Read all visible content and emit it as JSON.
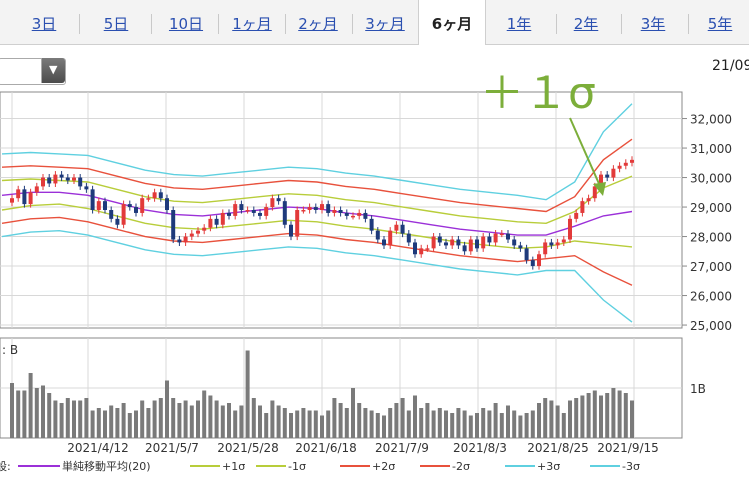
{
  "tabs": [
    {
      "label": "3日",
      "active": false
    },
    {
      "label": "5日",
      "active": false
    },
    {
      "label": "10日",
      "active": false
    },
    {
      "label": "1ヶ月",
      "active": false
    },
    {
      "label": "2ヶ月",
      "active": false
    },
    {
      "label": "3ヶ月",
      "active": false
    },
    {
      "label": "6ヶ月",
      "active": true
    },
    {
      "label": "1年",
      "active": false
    },
    {
      "label": "2年",
      "active": false
    },
    {
      "label": "3年",
      "active": false
    },
    {
      "label": "5年",
      "active": false
    }
  ],
  "date_label": "21/09",
  "annotation": {
    "text": "＋１σ",
    "color": "#7cae3a"
  },
  "chart_data": {
    "type": "line",
    "price_axis": {
      "ticks": [
        "32,000",
        "31,000",
        "30,000",
        "29,000",
        "28,000",
        "27,000",
        "26,000",
        "25,000"
      ],
      "ylim": [
        24900,
        32900
      ]
    },
    "volume_axis": {
      "ticks": [
        "1B"
      ],
      "prefix": ": B"
    },
    "x_labels": [
      "2021/4/12",
      "2021/5/7",
      "2021/5/28",
      "2021/6/18",
      "2021/7/9",
      "2021/8/3",
      "2021/8/25",
      "2021/9/15"
    ],
    "close": [
      29300,
      29600,
      29100,
      29500,
      29700,
      30000,
      29800,
      30100,
      30000,
      29900,
      30000,
      29700,
      29600,
      28900,
      29200,
      28900,
      28600,
      28400,
      29100,
      29000,
      28800,
      29300,
      29300,
      29500,
      29300,
      28900,
      27900,
      27800,
      28000,
      28100,
      28200,
      28300,
      28600,
      28400,
      28800,
      28700,
      29100,
      28900,
      28900,
      28800,
      28700,
      29000,
      29300,
      29200,
      28400,
      28000,
      28900,
      28900,
      29000,
      28900,
      29100,
      28800,
      28900,
      28800,
      28700,
      28700,
      28800,
      28600,
      28200,
      27900,
      27700,
      28200,
      28400,
      28100,
      27800,
      27400,
      27600,
      27600,
      28000,
      27800,
      27700,
      27900,
      27700,
      27500,
      27900,
      27600,
      28000,
      27800,
      28100,
      28100,
      27900,
      27700,
      27600,
      27200,
      27000,
      27400,
      27800,
      27700,
      27800,
      27900,
      28600,
      28800,
      29200,
      29300,
      29700,
      30100,
      30000,
      30300,
      30400,
      30500,
      30600
    ],
    "volume_b": [
      1.1,
      0.95,
      0.95,
      1.3,
      1.0,
      1.05,
      0.9,
      0.75,
      0.7,
      0.8,
      0.75,
      0.75,
      0.8,
      0.55,
      0.6,
      0.55,
      0.65,
      0.6,
      0.7,
      0.5,
      0.55,
      0.75,
      0.6,
      0.75,
      0.8,
      1.15,
      0.8,
      0.7,
      0.75,
      0.65,
      0.75,
      0.95,
      0.85,
      0.75,
      0.65,
      0.7,
      0.55,
      0.65,
      1.75,
      0.8,
      0.65,
      0.5,
      0.75,
      0.65,
      0.6,
      0.5,
      0.55,
      0.6,
      0.55,
      0.55,
      0.45,
      0.55,
      0.8,
      0.7,
      0.6,
      1.0,
      0.7,
      0.6,
      0.55,
      0.5,
      0.45,
      0.6,
      0.7,
      0.8,
      0.55,
      0.85,
      0.6,
      0.7,
      0.55,
      0.6,
      0.55,
      0.5,
      0.6,
      0.55,
      0.45,
      0.5,
      0.6,
      0.55,
      0.7,
      0.5,
      0.65,
      0.55,
      0.45,
      0.5,
      0.55,
      0.7,
      0.8,
      0.75,
      0.65,
      0.5,
      0.75,
      0.8,
      0.85,
      0.9,
      0.95,
      0.85,
      0.9,
      1.0,
      0.95,
      0.9,
      0.75
    ],
    "series": [
      {
        "name": "単純移動平均(20)",
        "color": "#9b30d8",
        "values": [
          29400,
          29500,
          29500,
          29400,
          29150,
          28900,
          28750,
          28700,
          28800,
          28900,
          29000,
          28950,
          28800,
          28700,
          28550,
          28400,
          28250,
          28150,
          28050,
          28050,
          28350,
          28700,
          28850
        ]
      },
      {
        "name": "+1σ",
        "color": "#b8cd3a",
        "values": [
          29900,
          29950,
          29900,
          29850,
          29600,
          29350,
          29200,
          29150,
          29250,
          29350,
          29450,
          29400,
          29250,
          29150,
          29000,
          28850,
          28700,
          28600,
          28500,
          28450,
          28850,
          29650,
          30050
        ]
      },
      {
        "name": "-1σ",
        "color": "#b8cd3a",
        "values": [
          28900,
          29050,
          29100,
          28950,
          28700,
          28450,
          28300,
          28250,
          28350,
          28450,
          28550,
          28500,
          28350,
          28250,
          28100,
          27950,
          27800,
          27700,
          27600,
          27650,
          27850,
          27750,
          27650
        ]
      },
      {
        "name": "+2σ",
        "color": "#e8513c",
        "values": [
          30350,
          30400,
          30350,
          30300,
          30050,
          29800,
          29650,
          29600,
          29700,
          29800,
          29900,
          29850,
          29700,
          29600,
          29450,
          29300,
          29150,
          29050,
          28950,
          28850,
          29350,
          30600,
          31300
        ]
      },
      {
        "name": "-2σ",
        "color": "#e8513c",
        "values": [
          28450,
          28600,
          28650,
          28500,
          28250,
          28000,
          27850,
          27800,
          27900,
          28000,
          28100,
          28050,
          27900,
          27800,
          27650,
          27500,
          27350,
          27250,
          27150,
          27250,
          27350,
          26800,
          26350
        ]
      },
      {
        "name": "+3σ",
        "color": "#5fd0e0",
        "values": [
          30800,
          30850,
          30800,
          30750,
          30500,
          30250,
          30100,
          30050,
          30150,
          30250,
          30350,
          30300,
          30150,
          30050,
          29900,
          29750,
          29600,
          29500,
          29400,
          29250,
          29850,
          31550,
          32500
        ]
      },
      {
        "name": "-3σ",
        "color": "#5fd0e0",
        "values": [
          28000,
          28150,
          28200,
          28050,
          27800,
          27550,
          27400,
          27350,
          27450,
          27550,
          27650,
          27600,
          27450,
          27350,
          27200,
          27050,
          26900,
          26800,
          26700,
          26850,
          26850,
          25850,
          25100
        ]
      }
    ]
  },
  "legend_prefix": "設:"
}
